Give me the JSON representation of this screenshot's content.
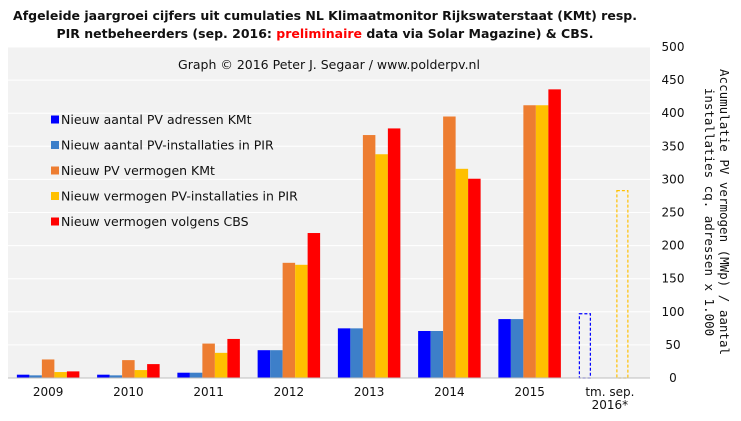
{
  "title": {
    "line1": "Afgeleide jaargroei cijfers uit cumulaties  NL Klimaatmonitor  Rijkswaterstaat (KMt) resp.",
    "line2_pre": "PIR netbeheerders (sep. 2016: ",
    "line2_red": "preliminaire",
    "line2_post": " data via Solar Magazine) & CBS."
  },
  "credit": "Graph  © 2016  Peter  J. Segaar  /  www.polderpv.nl",
  "colors": {
    "plot_bg": "#f2f2f2",
    "grid": "#ffffff",
    "accent_red": "#ff0000"
  },
  "chart_data": {
    "type": "bar",
    "categories": [
      "2009",
      "2010",
      "2011",
      "2012",
      "2013",
      "2014",
      "2015",
      "tm. sep.\n2016*"
    ],
    "ylim": [
      0,
      500
    ],
    "yticks": [
      0,
      50,
      100,
      150,
      200,
      250,
      300,
      350,
      400,
      450,
      500
    ],
    "ylabel_line1": "Accumulatie PV vermogen (MWp) / aantal",
    "ylabel_line2": "installaties cq. adressen x 1.000",
    "grid": true,
    "legend_position": "top-left",
    "series": [
      {
        "name": "Nieuw aantal PV adressen KMt",
        "color": "#0000ff",
        "values": [
          5,
          5,
          8,
          42,
          75,
          71,
          89,
          97
        ]
      },
      {
        "name": "Nieuw aantal PV-installaties in PIR",
        "color": "#3d7fc9",
        "values": [
          4,
          4,
          8,
          42,
          75,
          71,
          89,
          null
        ]
      },
      {
        "name": "Nieuw PV vermogen KMt",
        "color": "#ed7d31",
        "values": [
          28,
          27,
          52,
          174,
          367,
          395,
          412,
          null
        ]
      },
      {
        "name": "Nieuw vermogen PV-installaties in PIR",
        "color": "#ffc000",
        "values": [
          9,
          12,
          38,
          171,
          338,
          316,
          412,
          283
        ]
      },
      {
        "name": "Nieuw vermogen volgens CBS",
        "color": "#ff0000",
        "values": [
          10,
          21,
          59,
          219,
          377,
          301,
          436,
          null
        ]
      }
    ],
    "dashed_outline_categories": [
      "tm. sep.\n2016*"
    ]
  }
}
